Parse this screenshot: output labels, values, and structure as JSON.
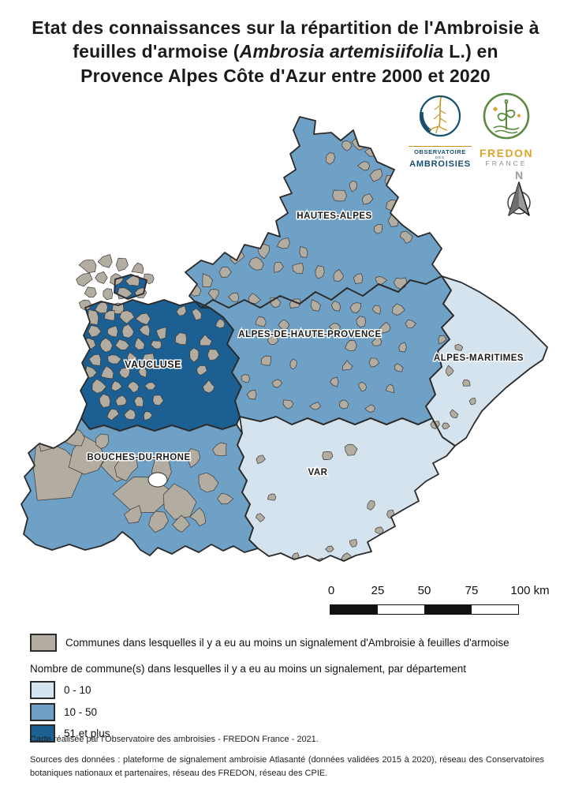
{
  "title": {
    "line1": "Etat des connaissances sur la répartition de l'Ambroisie à",
    "line2_prefix": "feuilles d'armoise (",
    "line2_italic": "Ambrosia artemisiifolia",
    "line2_suffix": " L.) en",
    "line3": "Provence Alpes Côte d'Azur entre 2000 et 2020"
  },
  "logos": {
    "observatoire": {
      "line1": "OBSERVATOIRE",
      "line2": "DES",
      "line3": "AMBROISIES",
      "ring_color": "#16506e",
      "plant_color": "#c8941f"
    },
    "fredon": {
      "line1": "FREDON",
      "line2": "FRANCE",
      "ring_color": "#5d8a41",
      "name_color": "#dda32b",
      "sub_color": "#8a9388",
      "star_color": "#dda32b"
    }
  },
  "north_arrow": {
    "label": "N"
  },
  "map": {
    "border_color": "#2b2b2b",
    "commune_border_color": "#3a3a3a",
    "commune_color": "#b3aca0",
    "water_color": "#ffffff",
    "departments": [
      {
        "name": "HAUTES-ALPES",
        "category": "10 - 50",
        "color": "#6fa0c5"
      },
      {
        "name": "ALPES-DE-HAUTE-PROVENCE",
        "category": "10 - 50",
        "color": "#6fa0c5"
      },
      {
        "name": "ALPES-MARITIMES",
        "category": "0 - 10",
        "color": "#d5e3ee"
      },
      {
        "name": "VAUCLUSE",
        "category": "51 et plus",
        "color": "#1c5f92"
      },
      {
        "name": "BOUCHES-DU-RHONE",
        "category": "10 - 50",
        "color": "#6fa0c5"
      },
      {
        "name": "VAR",
        "category": "0 - 10",
        "color": "#d5e3ee"
      }
    ]
  },
  "scale_bar": {
    "ticks": [
      "0",
      "25",
      "50",
      "75",
      "100 km"
    ]
  },
  "legend": {
    "communes": {
      "label": "Communes dans lesquelles il y a eu au moins un signalement d'Ambroisie à feuilles d'armoise",
      "color": "#b3aca0"
    },
    "classes_title": "Nombre de commune(s) dans lesquelles il y a eu au moins un signalement, par département",
    "classes": [
      {
        "label": "0 - 10",
        "color": "#d5e3ee"
      },
      {
        "label": "10 - 50",
        "color": "#6fa0c5"
      },
      {
        "label": "51 et plus",
        "color": "#1c5f92"
      }
    ]
  },
  "credits": "Carte réalisée par l'Observatoire des ambroisies - FREDON France - 2021.",
  "sources": "Sources des données : plateforme de signalement ambroisie Atlasanté (données validées 2015 à 2020), réseau des Conservatoires botaniques nationaux et partenaires, réseau des FREDON, réseau des CPIE."
}
